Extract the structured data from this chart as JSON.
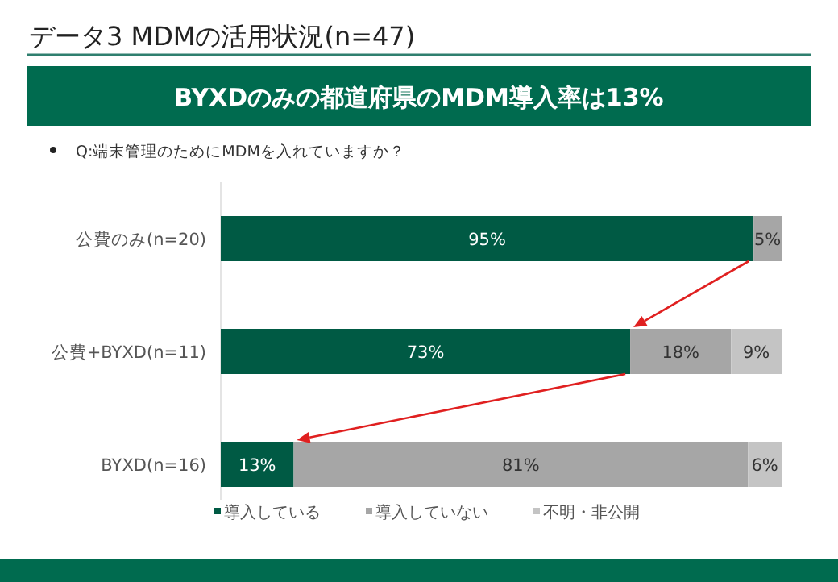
{
  "chart_data": {
    "type": "bar",
    "orientation": "horizontal",
    "stacked": true,
    "title": "データ3  MDMの活用状況(n=47)",
    "subtitle": "BYXDのみの都道府県のMDM導入率は13%",
    "annotations": [
      "Q:端末管理のためにMDMを入れていますか？"
    ],
    "categories": [
      "公費のみ(n=20)",
      "公費+BYXD(n=11)",
      "BYXD(n=16)"
    ],
    "series": [
      {
        "name": "導入している",
        "color": "#005a44",
        "values": [
          95,
          73,
          13
        ],
        "value_labels": [
          "95%",
          "73%",
          "13%"
        ]
      },
      {
        "name": "導入していない",
        "color": "#a6a6a6",
        "values": [
          5,
          18,
          81
        ],
        "value_labels": [
          "5%",
          "18%",
          "81%"
        ]
      },
      {
        "name": "不明・非公開",
        "color": "#c4c4c4",
        "values": [
          0,
          9,
          6
        ],
        "value_labels": [
          null,
          "9%",
          "6%"
        ]
      }
    ],
    "legend": "bottom"
  }
}
